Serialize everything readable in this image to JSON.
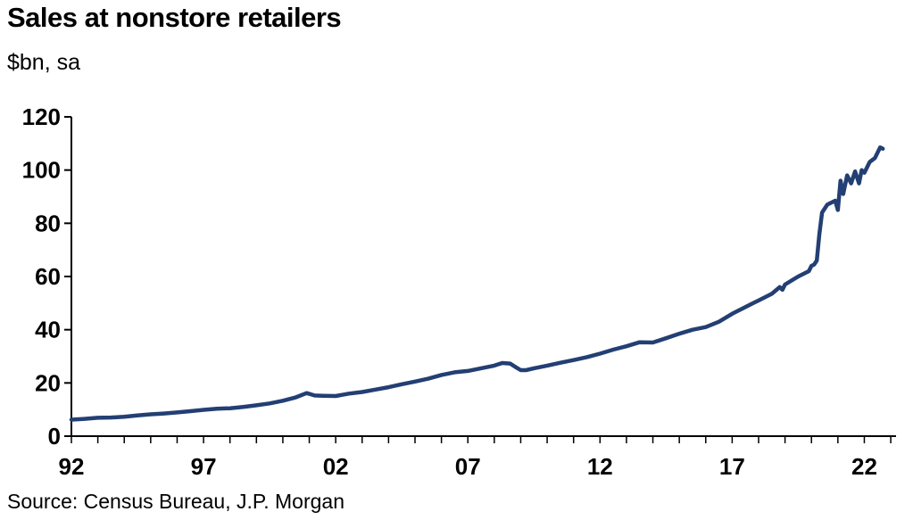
{
  "chart_data": {
    "type": "line",
    "title": "Sales at nonstore retailers",
    "subtitle": "$bn, sa",
    "source": "Source: Census Bureau, J.P. Morgan",
    "xlabel": "",
    "ylabel": "",
    "xlim": [
      1992,
      2023.2
    ],
    "ylim": [
      0,
      120
    ],
    "yticks": [
      0,
      20,
      40,
      60,
      80,
      100,
      120
    ],
    "xticks": [
      {
        "value": 1992,
        "label": "92"
      },
      {
        "value": 1997,
        "label": "97"
      },
      {
        "value": 2002,
        "label": "02"
      },
      {
        "value": 2007,
        "label": "07"
      },
      {
        "value": 2012,
        "label": "12"
      },
      {
        "value": 2017,
        "label": "17"
      },
      {
        "value": 2022,
        "label": "22"
      }
    ],
    "grid": false,
    "legend": "none",
    "line_color": "#233f73",
    "series": [
      {
        "x": [
          1992.0,
          1992.5,
          1993.0,
          1993.5,
          1994.0,
          1994.5,
          1995.0,
          1995.5,
          1996.0,
          1996.5,
          1997.0,
          1997.5,
          1998.0,
          1998.5,
          1999.0,
          1999.5,
          2000.0,
          2000.5,
          2000.9,
          2001.2,
          2001.5,
          2002.0,
          2002.5,
          2003.0,
          2003.5,
          2004.0,
          2004.5,
          2005.0,
          2005.5,
          2006.0,
          2006.5,
          2007.0,
          2007.5,
          2008.0,
          2008.3,
          2008.6,
          2008.8,
          2009.0,
          2009.2,
          2009.5,
          2010.0,
          2010.5,
          2011.0,
          2011.5,
          2012.0,
          2012.5,
          2013.0,
          2013.5,
          2014.0,
          2014.5,
          2015.0,
          2015.5,
          2016.0,
          2016.5,
          2017.0,
          2017.5,
          2017.8,
          2018.0,
          2018.5,
          2018.8,
          2018.9,
          2019.0,
          2019.5,
          2019.9,
          2020.0,
          2020.1,
          2020.2,
          2020.3,
          2020.4,
          2020.6,
          2020.9,
          2021.0,
          2021.1,
          2021.2,
          2021.35,
          2021.5,
          2021.65,
          2021.8,
          2021.9,
          2022.0,
          2022.2,
          2022.4,
          2022.6,
          2022.7
        ],
        "y": [
          6.2,
          6.5,
          6.9,
          7.0,
          7.3,
          7.8,
          8.2,
          8.5,
          8.9,
          9.4,
          9.9,
          10.3,
          10.5,
          11.0,
          11.6,
          12.3,
          13.3,
          14.6,
          16.2,
          15.3,
          15.2,
          15.1,
          16.0,
          16.6,
          17.5,
          18.4,
          19.5,
          20.5,
          21.6,
          23.0,
          24.0,
          24.5,
          25.5,
          26.5,
          27.5,
          27.3,
          26.0,
          24.8,
          24.8,
          25.5,
          26.5,
          27.6,
          28.6,
          29.7,
          31.0,
          32.5,
          33.8,
          35.3,
          35.2,
          36.8,
          38.5,
          40.0,
          41.0,
          43.0,
          46.0,
          48.5,
          50.0,
          51.0,
          53.5,
          56.0,
          55.0,
          57.0,
          60.0,
          62.0,
          64.0,
          64.5,
          66.0,
          76.0,
          84.0,
          87.0,
          88.5,
          85.0,
          96.0,
          91.0,
          98.0,
          95.0,
          99.5,
          95.0,
          100.0,
          99.0,
          103.0,
          104.5,
          108.5,
          108.0
        ]
      }
    ]
  }
}
